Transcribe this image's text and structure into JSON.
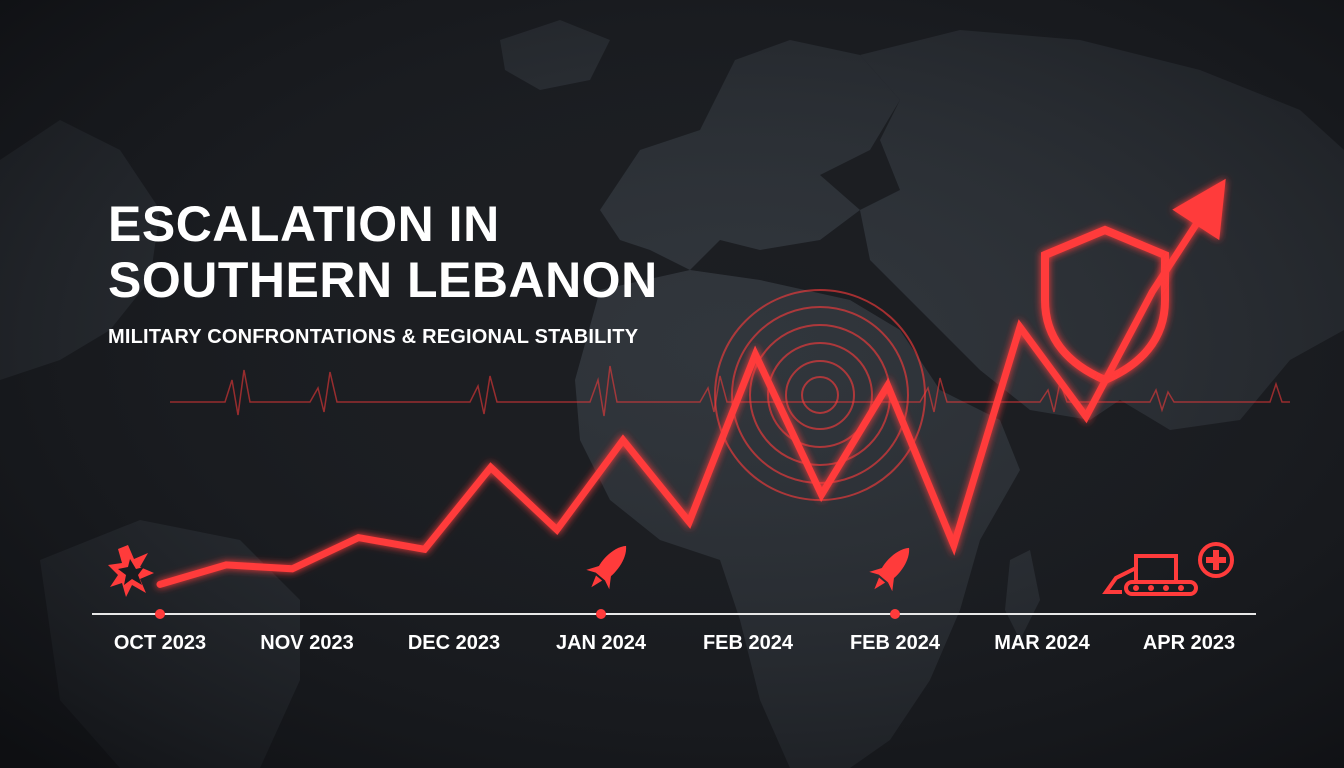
{
  "title": {
    "line1": "ESCALATION IN",
    "line2": "SOUTHERN LEBANON"
  },
  "subtitle": "MILITARY CONFRONTATIONS & REGIONAL STABILITY",
  "colors": {
    "background": "#1a1c20",
    "map_land": "#3a3f46",
    "accent_red": "#ff3b3b",
    "axis": "#e8e8e8",
    "text": "#ffffff"
  },
  "icons": [
    "explosion-icon",
    "rocket-icon",
    "rocket-icon",
    "bulldozer-icon",
    "medical-cross-icon",
    "shield-icon",
    "arrow-up-icon",
    "radar-rings-icon",
    "heartbeat-line-icon"
  ],
  "chart_data": {
    "type": "line",
    "title": "ESCALATION IN SOUTHERN LEBANON",
    "xlabel": "",
    "ylabel": "",
    "grid": false,
    "legend": "none",
    "tick_labels": [
      "OCT 2023",
      "NOV 2023",
      "DEC 2023",
      "JAN 2024",
      "FEB 2024",
      "FEB 2024",
      "MAR 2024",
      "APR 2023"
    ],
    "x_range": [
      0,
      7
    ],
    "ylim": [
      0,
      100
    ],
    "series": [
      {
        "x": [
          0,
          0.45,
          0.9,
          1.35,
          1.8,
          2.25,
          2.7,
          3.15,
          3.6,
          4.05,
          4.5,
          4.95,
          5.4,
          5.85,
          6.3,
          6.75,
          7.25
        ],
        "values": [
          4,
          9,
          8,
          16,
          13,
          34,
          18,
          41,
          20,
          63,
          27,
          55,
          14,
          70,
          47,
          79,
          108
        ]
      }
    ],
    "markers": [
      {
        "x": 0,
        "icon": "explosion-icon"
      },
      {
        "x": 3,
        "icon": "rocket-icon"
      },
      {
        "x": 5,
        "icon": "rocket-icon"
      },
      {
        "x": 7,
        "icon": "bulldozer-icon"
      }
    ]
  }
}
